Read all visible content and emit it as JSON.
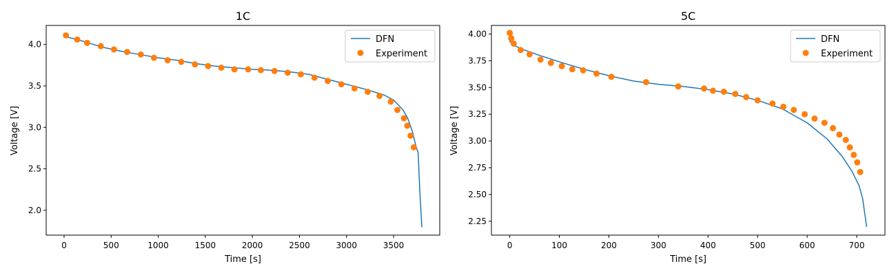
{
  "colors": {
    "model": "#1f77b4",
    "experiment": "#ff7f0e",
    "frame": "#000000",
    "legend_border": "#cccccc"
  },
  "chart_data": [
    {
      "type": "line",
      "title": "1C",
      "xlabel": "Time [s]",
      "ylabel": "Voltage [V]",
      "xlim": [
        -190,
        3990
      ],
      "ylim": [
        1.7,
        4.23
      ],
      "xticks": [
        0,
        500,
        1000,
        1500,
        2000,
        2500,
        3000,
        3500
      ],
      "yticks": [
        2.0,
        2.5,
        3.0,
        3.5,
        4.0
      ],
      "ytick_labels": [
        "2.0",
        "2.5",
        "3.0",
        "3.5",
        "4.0"
      ],
      "legend": "top-right",
      "grid": false,
      "series": [
        {
          "name": "DFN",
          "kind": "line",
          "x": [
            0,
            200,
            400,
            600,
            800,
            1000,
            1200,
            1400,
            1600,
            1800,
            2000,
            2200,
            2400,
            2600,
            2800,
            3000,
            3200,
            3400,
            3500,
            3600,
            3650,
            3700,
            3740,
            3760,
            3780,
            3800
          ],
          "y": [
            4.1,
            4.04,
            3.97,
            3.92,
            3.88,
            3.84,
            3.81,
            3.77,
            3.74,
            3.72,
            3.7,
            3.69,
            3.67,
            3.64,
            3.58,
            3.52,
            3.46,
            3.39,
            3.33,
            3.21,
            3.11,
            2.95,
            2.76,
            2.7,
            2.2,
            1.8
          ]
        },
        {
          "name": "Experiment",
          "kind": "scatter",
          "x": [
            20,
            140,
            245,
            390,
            530,
            670,
            815,
            955,
            1100,
            1245,
            1390,
            1530,
            1670,
            1810,
            1955,
            2090,
            2235,
            2375,
            2515,
            2660,
            2800,
            2945,
            3085,
            3225,
            3350,
            3470,
            3540,
            3610,
            3645,
            3680,
            3715
          ],
          "y": [
            4.11,
            4.06,
            4.02,
            3.98,
            3.94,
            3.91,
            3.88,
            3.84,
            3.81,
            3.79,
            3.76,
            3.74,
            3.72,
            3.7,
            3.7,
            3.69,
            3.68,
            3.66,
            3.64,
            3.6,
            3.56,
            3.52,
            3.47,
            3.43,
            3.38,
            3.31,
            3.21,
            3.11,
            3.02,
            2.9,
            2.76
          ]
        }
      ]
    },
    {
      "type": "line",
      "title": "5C",
      "xlabel": "Time [s]",
      "ylabel": "Voltage [V]",
      "xlim": [
        -37,
        757
      ],
      "ylim": [
        2.12,
        4.08
      ],
      "xticks": [
        0,
        100,
        200,
        300,
        400,
        500,
        600,
        700
      ],
      "yticks": [
        2.25,
        2.5,
        2.75,
        3.0,
        3.25,
        3.5,
        3.75,
        4.0
      ],
      "ytick_labels": [
        "2.25",
        "2.50",
        "2.75",
        "3.00",
        "3.25",
        "3.50",
        "3.75",
        "4.00"
      ],
      "legend": "top-right",
      "grid": false,
      "series": [
        {
          "name": "DFN",
          "kind": "line",
          "x": [
            0,
            10,
            30,
            60,
            100,
            150,
            200,
            250,
            300,
            350,
            400,
            450,
            500,
            550,
            600,
            640,
            670,
            690,
            705,
            712,
            720
          ],
          "y": [
            3.93,
            3.89,
            3.85,
            3.8,
            3.74,
            3.67,
            3.61,
            3.56,
            3.53,
            3.51,
            3.48,
            3.44,
            3.38,
            3.3,
            3.17,
            3.02,
            2.86,
            2.72,
            2.58,
            2.46,
            2.2
          ]
        },
        {
          "name": "Experiment",
          "kind": "scatter",
          "x": [
            0,
            3,
            8,
            22,
            40,
            62,
            83,
            105,
            126,
            148,
            175,
            205,
            275,
            340,
            392,
            410,
            432,
            455,
            477,
            500,
            530,
            552,
            573,
            595,
            615,
            635,
            652,
            665,
            678,
            686,
            694,
            701,
            707
          ],
          "y": [
            4.01,
            3.96,
            3.91,
            3.85,
            3.81,
            3.76,
            3.73,
            3.7,
            3.67,
            3.66,
            3.63,
            3.6,
            3.55,
            3.51,
            3.49,
            3.47,
            3.46,
            3.44,
            3.41,
            3.38,
            3.35,
            3.32,
            3.29,
            3.25,
            3.21,
            3.17,
            3.12,
            3.06,
            3.01,
            2.94,
            2.87,
            2.8,
            2.71
          ]
        }
      ]
    }
  ]
}
